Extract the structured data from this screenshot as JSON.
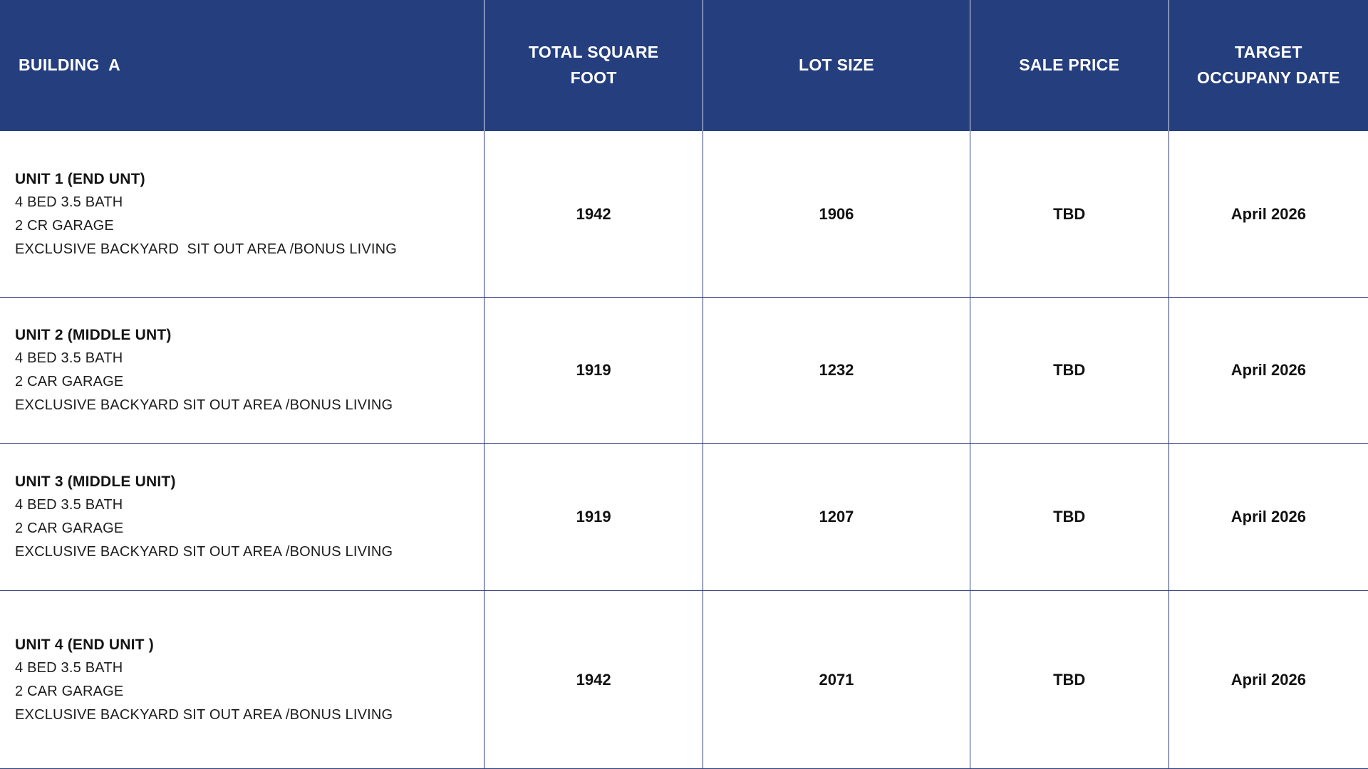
{
  "header": {
    "building": "BUILDING  A",
    "sqft": "TOTAL SQUARE\nFOOT",
    "lot": "LOT SIZE",
    "price": "SALE PRICE",
    "target": "TARGET\nOCCUPANY DATE"
  },
  "rows": [
    {
      "title": "UNIT 1 (END UNT)",
      "details": [
        "4 BED 3.5 BATH",
        "2 CR GARAGE",
        "EXCLUSIVE BACKYARD  SIT OUT AREA /BONUS LIVING"
      ],
      "sqft": "1942",
      "lot": "1906",
      "price": "TBD",
      "date": "April 2026"
    },
    {
      "title": "UNIT 2 (MIDDLE UNT)",
      "details": [
        "4 BED 3.5 BATH",
        "2 CAR GARAGE",
        "EXCLUSIVE BACKYARD SIT OUT AREA /BONUS LIVING"
      ],
      "sqft": "1919",
      "lot": "1232",
      "price": "TBD",
      "date": "April 2026"
    },
    {
      "title": "UNIT 3 (MIDDLE UNIT)",
      "details": [
        "4 BED 3.5 BATH",
        "2 CAR GARAGE",
        "EXCLUSIVE BACKYARD SIT OUT AREA /BONUS LIVING"
      ],
      "sqft": "1919",
      "lot": "1207",
      "price": "TBD",
      "date": "April 2026"
    },
    {
      "title": "UNIT 4 (END UNIT )",
      "details": [
        "4 BED 3.5 BATH",
        "2 CAR GARAGE",
        "EXCLUSIVE BACKYARD SIT OUT AREA /BONUS LIVING"
      ],
      "sqft": "1942",
      "lot": "2071",
      "price": "TBD",
      "date": "April 2026"
    }
  ],
  "colors": {
    "header_bg": "#253E7E",
    "border_color": "#2E3F7D",
    "header_text": "#FFFFFF",
    "body_text": "#1C1C1C"
  }
}
